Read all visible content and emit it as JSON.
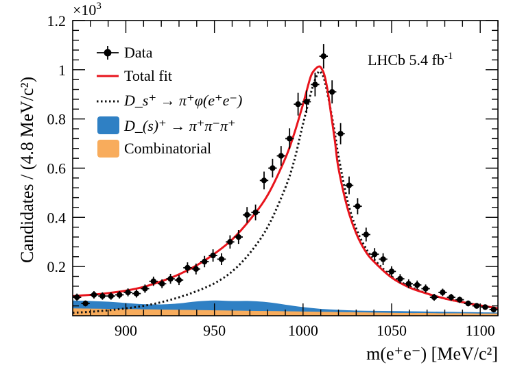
{
  "chart_data": {
    "type": "line",
    "experiment_label": "LHCb 5.4 fb",
    "luminosity_superscript": "-1",
    "y_multiplier": "×10",
    "y_multiplier_exp": "3",
    "ylabel": "Candidates / (4.8 MeV/c²)",
    "xlabel": "m(e⁺e⁻) [MeV/c²]",
    "xlim": [
      870,
      1110
    ],
    "ylim": [
      0,
      1.2
    ],
    "x_ticks": [
      900,
      950,
      1000,
      1050,
      1100
    ],
    "x_tick_labels": [
      "900",
      "950",
      "1000",
      "1050",
      "1100"
    ],
    "y_ticks": [
      0.2,
      0.4,
      0.6,
      0.8,
      1.0,
      1.2
    ],
    "y_tick_labels": [
      "0.2",
      "0.4",
      "0.6",
      "0.8",
      "1",
      "1.2"
    ],
    "legend": {
      "position": "top-left",
      "entries": [
        {
          "key": "data",
          "label": "Data",
          "style": "marker"
        },
        {
          "key": "total",
          "label": "Total fit",
          "style": "line",
          "color": "#e8141c"
        },
        {
          "key": "signal",
          "label": "D_s⁺ → π⁺φ(e⁺e⁻)",
          "style": "dotted",
          "color": "#111111"
        },
        {
          "key": "pipipi",
          "label": "D_(s)⁺ → π⁺π⁻π⁺",
          "style": "fill",
          "color": "#2f80c4"
        },
        {
          "key": "comb",
          "label": "Combinatorial",
          "style": "fill",
          "color": "#f8ac5c"
        }
      ]
    },
    "data_points": {
      "x": [
        872.4,
        877.2,
        882.0,
        886.8,
        891.6,
        896.4,
        901.2,
        906.0,
        910.8,
        915.6,
        920.4,
        925.2,
        930.0,
        934.8,
        939.6,
        944.4,
        949.2,
        954.0,
        958.8,
        963.6,
        968.4,
        973.2,
        978.0,
        982.8,
        987.6,
        992.4,
        997.2,
        1002.0,
        1006.8,
        1011.6,
        1016.4,
        1021.2,
        1026.0,
        1030.8,
        1035.6,
        1040.4,
        1045.2,
        1050.0,
        1054.8,
        1059.6,
        1064.4,
        1069.2,
        1074.0,
        1078.8,
        1083.6,
        1088.4,
        1093.2,
        1098.0,
        1102.8,
        1107.6
      ],
      "y": [
        0.075,
        0.05,
        0.085,
        0.08,
        0.08,
        0.085,
        0.095,
        0.09,
        0.11,
        0.14,
        0.13,
        0.15,
        0.145,
        0.195,
        0.19,
        0.22,
        0.245,
        0.23,
        0.3,
        0.32,
        0.41,
        0.42,
        0.55,
        0.6,
        0.65,
        0.72,
        0.86,
        0.87,
        0.94,
        1.055,
        0.91,
        0.74,
        0.53,
        0.445,
        0.33,
        0.25,
        0.23,
        0.18,
        0.15,
        0.13,
        0.125,
        0.11,
        0.075,
        0.095,
        0.075,
        0.065,
        0.05,
        0.04,
        0.035,
        0.025
      ],
      "yerr": [
        0.015,
        0.012,
        0.015,
        0.015,
        0.015,
        0.015,
        0.016,
        0.016,
        0.017,
        0.019,
        0.018,
        0.02,
        0.02,
        0.022,
        0.022,
        0.023,
        0.025,
        0.024,
        0.027,
        0.028,
        0.032,
        0.032,
        0.036,
        0.038,
        0.04,
        0.042,
        0.046,
        0.046,
        0.048,
        0.05,
        0.047,
        0.043,
        0.036,
        0.033,
        0.028,
        0.025,
        0.024,
        0.021,
        0.019,
        0.018,
        0.018,
        0.017,
        0.014,
        0.015,
        0.014,
        0.013,
        0.012,
        0.01,
        0.01,
        0.009
      ]
    },
    "series": [
      {
        "name": "Total fit",
        "x": [
          870,
          880,
          890,
          900,
          910,
          920,
          930,
          940,
          950,
          960,
          970,
          980,
          990,
          995,
          1000,
          1004,
          1006,
          1008,
          1009,
          1010,
          1012,
          1014,
          1016,
          1018,
          1020,
          1025,
          1030,
          1035,
          1040,
          1050,
          1060,
          1070,
          1080,
          1090,
          1100,
          1110
        ],
        "values": [
          0.08,
          0.085,
          0.092,
          0.102,
          0.117,
          0.14,
          0.168,
          0.205,
          0.252,
          0.31,
          0.39,
          0.49,
          0.64,
          0.74,
          0.86,
          0.965,
          0.995,
          1.01,
          1.013,
          1.01,
          0.98,
          0.91,
          0.81,
          0.71,
          0.6,
          0.44,
          0.335,
          0.265,
          0.22,
          0.155,
          0.115,
          0.09,
          0.07,
          0.055,
          0.042,
          0.03
        ]
      },
      {
        "name": "Signal",
        "x": [
          870,
          880,
          890,
          900,
          910,
          920,
          930,
          940,
          950,
          960,
          970,
          980,
          990,
          995,
          1000,
          1005,
          1008,
          1009,
          1010,
          1012,
          1015,
          1018,
          1020,
          1025,
          1030,
          1035,
          1040,
          1050,
          1060,
          1070,
          1080,
          1090,
          1100,
          1110
        ],
        "values": [
          0.012,
          0.016,
          0.022,
          0.03,
          0.04,
          0.055,
          0.075,
          0.1,
          0.132,
          0.18,
          0.255,
          0.36,
          0.52,
          0.63,
          0.78,
          0.92,
          0.98,
          0.993,
          0.99,
          0.96,
          0.86,
          0.74,
          0.65,
          0.47,
          0.355,
          0.28,
          0.23,
          0.16,
          0.12,
          0.09,
          0.07,
          0.055,
          0.042,
          0.03
        ]
      },
      {
        "name": "Pipipi",
        "x": [
          870,
          880,
          890,
          900,
          910,
          920,
          930,
          940,
          950,
          960,
          970,
          980,
          990,
          1000,
          1010,
          1020,
          1030,
          1040,
          1050,
          1060,
          1070,
          1080,
          1090,
          1100,
          1110
        ],
        "values": [
          0.062,
          0.06,
          0.057,
          0.052,
          0.047,
          0.046,
          0.05,
          0.058,
          0.062,
          0.06,
          0.06,
          0.055,
          0.045,
          0.035,
          0.028,
          0.024,
          0.021,
          0.02,
          0.019,
          0.018,
          0.017,
          0.016,
          0.015,
          0.014,
          0.013
        ]
      },
      {
        "name": "Combinatorial",
        "x": [
          870,
          880,
          890,
          900,
          910,
          920,
          930,
          940,
          950,
          960,
          970,
          980,
          990,
          1000,
          1010,
          1020,
          1030,
          1040,
          1050,
          1060,
          1070,
          1080,
          1090,
          1100,
          1110
        ],
        "values": [
          0.03,
          0.029,
          0.028,
          0.027,
          0.026,
          0.025,
          0.024,
          0.023,
          0.022,
          0.021,
          0.02,
          0.019,
          0.018,
          0.017,
          0.016,
          0.015,
          0.014,
          0.013,
          0.012,
          0.011,
          0.011,
          0.01,
          0.01,
          0.009,
          0.009
        ]
      }
    ]
  }
}
